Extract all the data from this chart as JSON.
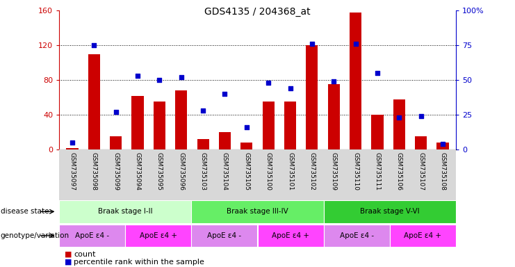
{
  "title": "GDS4135 / 204368_at",
  "samples": [
    "GSM735097",
    "GSM735098",
    "GSM735099",
    "GSM735094",
    "GSM735095",
    "GSM735096",
    "GSM735103",
    "GSM735104",
    "GSM735105",
    "GSM735100",
    "GSM735101",
    "GSM735102",
    "GSM735109",
    "GSM735110",
    "GSM735111",
    "GSM735106",
    "GSM735107",
    "GSM735108"
  ],
  "counts": [
    2,
    110,
    15,
    62,
    55,
    68,
    12,
    20,
    8,
    55,
    55,
    120,
    75,
    158,
    40,
    58,
    15,
    8
  ],
  "percentiles": [
    5,
    75,
    27,
    53,
    50,
    52,
    28,
    40,
    16,
    48,
    44,
    76,
    49,
    76,
    55,
    23,
    24,
    4
  ],
  "ylim_left": [
    0,
    160
  ],
  "ylim_right": [
    0,
    100
  ],
  "yticks_left": [
    0,
    40,
    80,
    120,
    160
  ],
  "ytick_labels_left": [
    "0",
    "40",
    "80",
    "120",
    "160"
  ],
  "yticks_right": [
    0,
    25,
    50,
    75,
    100
  ],
  "ytick_labels_right": [
    "0",
    "25",
    "50",
    "75",
    "100%"
  ],
  "bar_color": "#cc0000",
  "dot_color": "#0000cc",
  "bg_color": "#ffffff",
  "disease_state_groups": [
    {
      "label": "Braak stage I-II",
      "start": 0,
      "end": 6,
      "color": "#ccffcc"
    },
    {
      "label": "Braak stage III-IV",
      "start": 6,
      "end": 12,
      "color": "#66ee66"
    },
    {
      "label": "Braak stage V-VI",
      "start": 12,
      "end": 18,
      "color": "#33cc33"
    }
  ],
  "genotype_groups": [
    {
      "label": "ApoE ε4 -",
      "start": 0,
      "end": 3,
      "color": "#dd88ee"
    },
    {
      "label": "ApoE ε4 +",
      "start": 3,
      "end": 6,
      "color": "#ff44ff"
    },
    {
      "label": "ApoE ε4 -",
      "start": 6,
      "end": 9,
      "color": "#dd88ee"
    },
    {
      "label": "ApoE ε4 +",
      "start": 9,
      "end": 12,
      "color": "#ff44ff"
    },
    {
      "label": "ApoE ε4 -",
      "start": 12,
      "end": 15,
      "color": "#dd88ee"
    },
    {
      "label": "ApoE ε4 +",
      "start": 15,
      "end": 18,
      "color": "#ff44ff"
    }
  ],
  "label_disease_state": "disease state",
  "label_genotype": "genotype/variation",
  "legend_count": "count",
  "legend_percentile": "percentile rank within the sample",
  "left_axis_color": "#cc0000",
  "right_axis_color": "#0000cc",
  "xtick_bg": "#d8d8d8"
}
